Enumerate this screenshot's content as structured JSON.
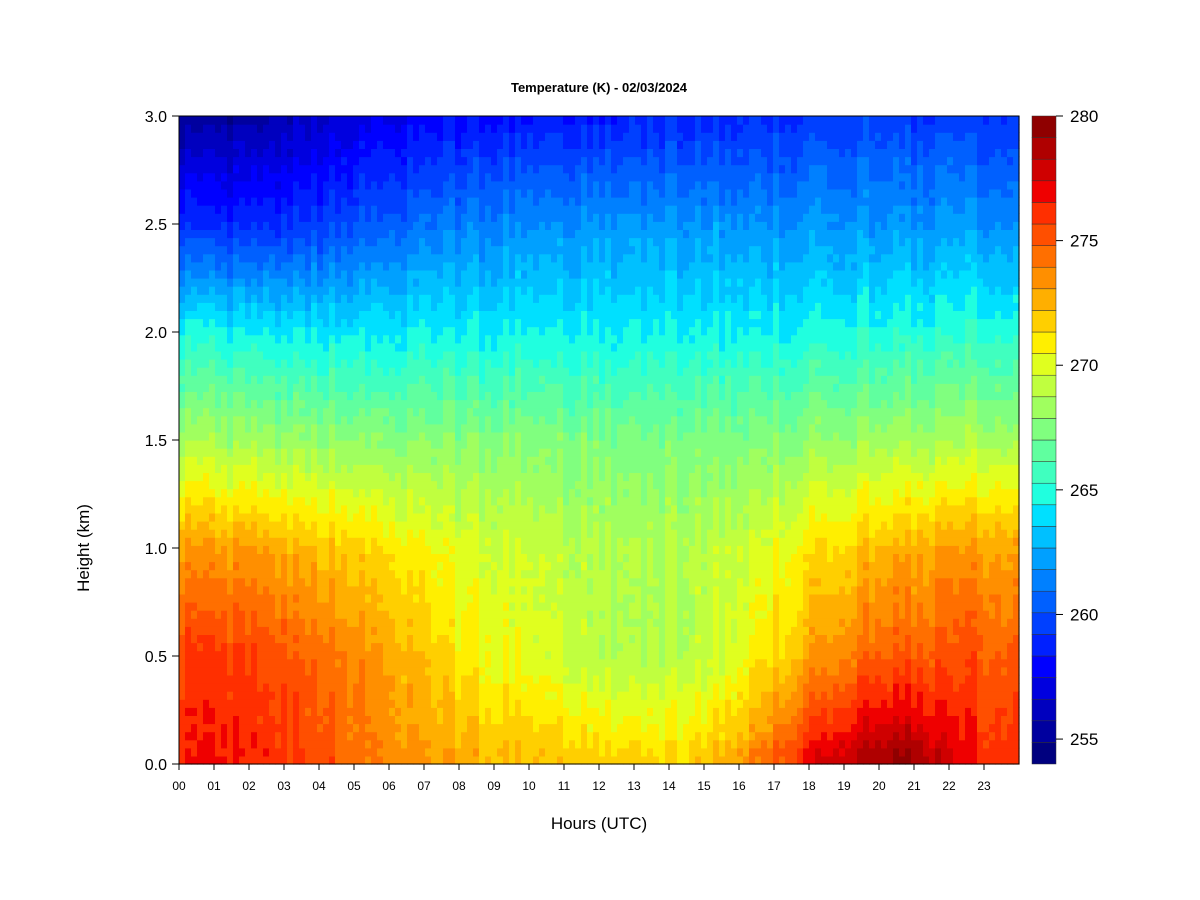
{
  "chart_data": {
    "type": "heatmap",
    "title": "Temperature (K) - 02/03/2024",
    "xlabel": "Hours (UTC)",
    "ylabel": "Height (km)",
    "x_ticks": [
      "00",
      "01",
      "02",
      "03",
      "04",
      "05",
      "06",
      "07",
      "08",
      "09",
      "10",
      "11",
      "12",
      "13",
      "14",
      "15",
      "16",
      "17",
      "18",
      "19",
      "20",
      "21",
      "22",
      "23"
    ],
    "xlim": [
      0,
      24
    ],
    "y_ticks": [
      "0.0",
      "0.5",
      "1.0",
      "1.5",
      "2.0",
      "2.5",
      "3.0"
    ],
    "ylim": [
      0.0,
      3.0
    ],
    "colorbar": {
      "ticks": [
        "255",
        "260",
        "265",
        "270",
        "275",
        "280"
      ],
      "range": [
        254,
        280
      ],
      "step": 1,
      "colors": [
        "#00007f",
        "#00009f",
        "#0000bf",
        "#0000df",
        "#0000ff",
        "#0020ff",
        "#0040ff",
        "#0060ff",
        "#0080ff",
        "#00a0ff",
        "#00c0ff",
        "#00e0ff",
        "#20ffdf",
        "#40ffbf",
        "#60ff9f",
        "#80ff7f",
        "#a0ff5f",
        "#c0ff3f",
        "#e0ff1f",
        "#ffef00",
        "#ffcf00",
        "#ffaf00",
        "#ff8f00",
        "#ff6f00",
        "#ff4f00",
        "#ff2f00",
        "#ef0000",
        "#cf0000",
        "#af0000",
        "#8f0000"
      ]
    },
    "field_model": {
      "description_values_in_K": true,
      "ground_temperature_by_hour": [
        276.5,
        276.5,
        276.3,
        276.0,
        275.5,
        274.5,
        273.8,
        273.2,
        272.8,
        272.5,
        272.2,
        272.0,
        271.8,
        271.6,
        271.6,
        272.0,
        273.0,
        275.0,
        277.0,
        278.2,
        279.0,
        279.3,
        277.5,
        276.5,
        276.5
      ],
      "temperature_at_0.5km_by_hour": [
        275.8,
        275.8,
        275.5,
        275.0,
        274.5,
        273.8,
        273.0,
        272.0,
        271.0,
        270.3,
        270.0,
        269.5,
        269.0,
        268.7,
        268.8,
        269.3,
        270.2,
        271.5,
        272.8,
        274.0,
        274.8,
        275.0,
        275.2,
        275.2,
        275.0
      ],
      "temperature_at_1.0km_by_hour": [
        273.2,
        273.0,
        272.8,
        272.5,
        272.2,
        271.8,
        271.2,
        270.5,
        270.0,
        269.7,
        269.5,
        269.2,
        268.9,
        268.7,
        268.8,
        269.0,
        269.5,
        270.3,
        271.0,
        271.8,
        272.3,
        272.7,
        273.0,
        273.2,
        273.2
      ],
      "temperature_at_1.5km_by_hour": [
        268.5,
        268.3,
        268.2,
        268.0,
        268.0,
        267.9,
        267.8,
        267.8,
        267.7,
        267.6,
        267.6,
        267.5,
        267.4,
        267.3,
        267.3,
        267.4,
        267.5,
        267.8,
        268.0,
        268.2,
        268.4,
        268.5,
        268.6,
        268.6,
        268.6
      ],
      "temperature_at_2.0km_by_hour": [
        264.8,
        264.5,
        264.3,
        264.2,
        264.2,
        264.3,
        264.3,
        264.4,
        264.4,
        264.4,
        264.4,
        264.4,
        264.4,
        264.4,
        264.5,
        264.5,
        264.6,
        264.6,
        264.7,
        264.8,
        264.9,
        265.0,
        265.1,
        265.2,
        265.2
      ],
      "temperature_at_2.5km_by_hour": [
        259.0,
        258.8,
        258.8,
        259.0,
        259.5,
        260.0,
        260.5,
        261.0,
        261.3,
        261.5,
        261.7,
        261.8,
        262.0,
        262.0,
        262.0,
        262.0,
        262.0,
        262.0,
        262.0,
        262.0,
        262.0,
        262.0,
        262.0,
        262.0,
        262.0
      ],
      "temperature_at_3.0km_by_hour": [
        255.2,
        255.0,
        255.2,
        255.8,
        256.5,
        257.0,
        257.5,
        257.8,
        258.0,
        258.2,
        258.4,
        258.5,
        258.6,
        258.7,
        258.8,
        258.9,
        259.0,
        259.2,
        259.3,
        259.4,
        259.5,
        259.5,
        259.5,
        259.5,
        259.5
      ]
    }
  }
}
